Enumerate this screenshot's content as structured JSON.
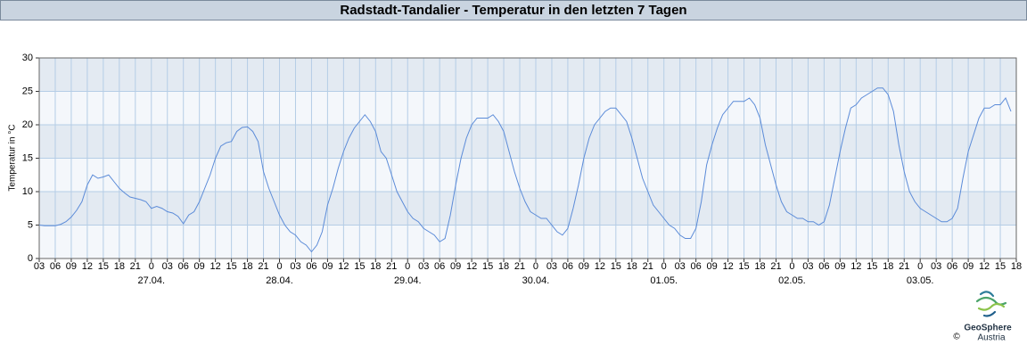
{
  "chart_data": {
    "type": "line",
    "title": "Radstadt-Tandalier - Temperatur in den letzten 7 Tagen",
    "ylabel": "Temperatur in °C",
    "x": [
      3,
      4,
      5,
      6,
      7,
      8,
      9,
      10,
      11,
      12,
      13,
      14,
      15,
      16,
      17,
      18,
      19,
      20,
      21,
      22,
      23,
      24,
      25,
      26,
      27,
      28,
      29,
      30,
      31,
      32,
      33,
      34,
      35,
      36,
      37,
      38,
      39,
      40,
      41,
      42,
      43,
      44,
      45,
      46,
      47,
      48,
      49,
      50,
      51,
      52,
      53,
      54,
      55,
      56,
      57,
      58,
      59,
      60,
      61,
      62,
      63,
      64,
      65,
      66,
      67,
      68,
      69,
      70,
      71,
      72,
      73,
      74,
      75,
      76,
      77,
      78,
      79,
      80,
      81,
      82,
      83,
      84,
      85,
      86,
      87,
      88,
      89,
      90,
      91,
      92,
      93,
      94,
      95,
      96,
      97,
      98,
      99,
      100,
      101,
      102,
      103,
      104,
      105,
      106,
      107,
      108,
      109,
      110,
      111,
      112,
      113,
      114,
      115,
      116,
      117,
      118,
      119,
      120,
      121,
      122,
      123,
      124,
      125,
      126,
      127,
      128,
      129,
      130,
      131,
      132,
      133,
      134,
      135,
      136,
      137,
      138,
      139,
      140,
      141,
      142,
      143,
      144,
      145,
      146,
      147,
      148,
      149,
      150,
      151,
      152,
      153,
      154,
      155,
      156,
      157,
      158,
      159,
      160,
      161,
      162,
      163,
      164,
      165,
      166,
      167,
      168,
      169,
      170,
      171,
      172,
      173,
      174,
      175,
      176,
      177,
      178,
      179,
      180,
      181,
      182,
      183,
      184,
      185
    ],
    "series": [
      {
        "name": "Temperatur",
        "color": "#5b8bd8",
        "values": [
          5.0,
          4.9,
          4.9,
          4.9,
          5.1,
          5.5,
          6.2,
          7.2,
          8.5,
          11,
          12.5,
          12,
          12.2,
          12.5,
          11.5,
          10.5,
          9.8,
          9.2,
          9,
          8.8,
          8.5,
          7.5,
          7.8,
          7.5,
          7,
          6.8,
          6.3,
          5.2,
          6.5,
          7,
          8.5,
          10.5,
          12.5,
          15,
          16.8,
          17.3,
          17.5,
          19,
          19.6,
          19.7,
          19,
          17.5,
          13,
          10.5,
          8.5,
          6.5,
          5,
          4,
          3.5,
          2.5,
          2,
          1,
          2,
          4,
          8,
          10.5,
          13.5,
          16,
          18,
          19.5,
          20.5,
          21.5,
          20.5,
          19,
          16,
          15,
          12.5,
          10,
          8.5,
          7,
          6,
          5.5,
          4.5,
          4,
          3.5,
          2.5,
          3,
          6.5,
          11,
          15,
          18,
          20,
          21,
          21,
          21,
          21.5,
          20.5,
          19,
          16,
          13,
          10.5,
          8.5,
          7,
          6.5,
          6,
          6,
          5,
          4,
          3.5,
          4.5,
          7.5,
          11,
          15,
          18,
          20,
          21,
          22,
          22.5,
          22.5,
          21.5,
          20.5,
          18,
          15,
          12,
          10,
          8,
          7,
          6,
          5,
          4.5,
          3.5,
          3,
          3,
          4.5,
          8.5,
          14,
          17,
          19.5,
          21.5,
          22.5,
          23.5,
          23.5,
          23.5,
          24,
          23,
          21,
          17,
          14,
          11,
          8.5,
          7,
          6.5,
          6,
          6,
          5.5,
          5.5,
          5,
          5.5,
          8,
          12,
          16,
          19.5,
          22.5,
          23,
          24,
          24.5,
          25,
          25.5,
          25.5,
          24.5,
          22,
          17,
          13,
          10,
          8.5,
          7.5,
          7,
          6.5,
          6,
          5.5,
          5.5,
          6,
          7.5,
          12,
          16,
          18.5,
          21,
          22.5,
          22.5,
          23,
          23,
          24,
          22
        ]
      }
    ],
    "xlim": [
      3,
      186
    ],
    "xticks": [
      {
        "value": 3,
        "label": "03"
      },
      {
        "value": 6,
        "label": "06"
      },
      {
        "value": 9,
        "label": "09"
      },
      12,
      15,
      18,
      21,
      {
        "value": 24,
        "label": "0"
      },
      {
        "value": 27,
        "label": "03"
      },
      {
        "value": 30,
        "label": "06"
      },
      {
        "value": 33,
        "label": "09"
      },
      {
        "value": 36,
        "label": "12"
      },
      {
        "value": 39,
        "label": "15"
      },
      {
        "value": 42,
        "label": "18"
      },
      {
        "value": 45,
        "label": "21"
      },
      {
        "value": 48,
        "label": "0"
      },
      {
        "value": 51,
        "label": "03"
      },
      {
        "value": 54,
        "label": "06"
      },
      {
        "value": 57,
        "label": "09"
      },
      {
        "value": 60,
        "label": "12"
      },
      {
        "value": 63,
        "label": "15"
      },
      {
        "value": 66,
        "label": "18"
      },
      {
        "value": 69,
        "label": "21"
      },
      {
        "value": 72,
        "label": "0"
      },
      {
        "value": 75,
        "label": "03"
      },
      {
        "value": 78,
        "label": "06"
      },
      {
        "value": 81,
        "label": "09"
      },
      {
        "value": 84,
        "label": "12"
      },
      {
        "value": 87,
        "label": "15"
      },
      {
        "value": 90,
        "label": "18"
      },
      {
        "value": 93,
        "label": "21"
      },
      {
        "value": 96,
        "label": "0"
      },
      {
        "value": 99,
        "label": "03"
      },
      {
        "value": 102,
        "label": "06"
      },
      {
        "value": 105,
        "label": "09"
      },
      {
        "value": 108,
        "label": "12"
      },
      {
        "value": 111,
        "label": "15"
      },
      {
        "value": 114,
        "label": "18"
      },
      {
        "value": 117,
        "label": "21"
      },
      {
        "value": 120,
        "label": "0"
      },
      {
        "value": 123,
        "label": "03"
      },
      {
        "value": 126,
        "label": "06"
      },
      {
        "value": 129,
        "label": "09"
      },
      {
        "value": 132,
        "label": "12"
      },
      {
        "value": 135,
        "label": "15"
      },
      {
        "value": 138,
        "label": "18"
      },
      {
        "value": 141,
        "label": "21"
      },
      {
        "value": 144,
        "label": "0"
      },
      {
        "value": 147,
        "label": "03"
      },
      {
        "value": 150,
        "label": "06"
      },
      {
        "value": 153,
        "label": "09"
      },
      {
        "value": 156,
        "label": "12"
      },
      {
        "value": 159,
        "label": "15"
      },
      {
        "value": 162,
        "label": "18"
      },
      {
        "value": 165,
        "label": "21"
      },
      {
        "value": 168,
        "label": "0"
      },
      {
        "value": 171,
        "label": "03"
      },
      {
        "value": 174,
        "label": "06"
      },
      {
        "value": 177,
        "label": "09"
      },
      {
        "value": 180,
        "label": "12"
      },
      {
        "value": 183,
        "label": "15"
      },
      {
        "value": 186,
        "label": "18"
      }
    ],
    "date_ticks": [
      {
        "value": 24,
        "label": "27.04."
      },
      {
        "value": 48,
        "label": "28.04."
      },
      {
        "value": 72,
        "label": "29.04."
      },
      {
        "value": 96,
        "label": "30.04."
      },
      {
        "value": 120,
        "label": "01.05."
      },
      {
        "value": 144,
        "label": "02.05."
      },
      {
        "value": 168,
        "label": "03.05."
      }
    ],
    "ylim": [
      0,
      30
    ],
    "yticks": [
      0,
      5,
      10,
      15,
      20,
      25,
      30
    ],
    "grid": true,
    "band_colors": [
      "#f4f7fb",
      "#e3eaf2"
    ],
    "logo": {
      "name": "GeoSphere",
      "sub": "Austria",
      "copyright": "©"
    }
  }
}
